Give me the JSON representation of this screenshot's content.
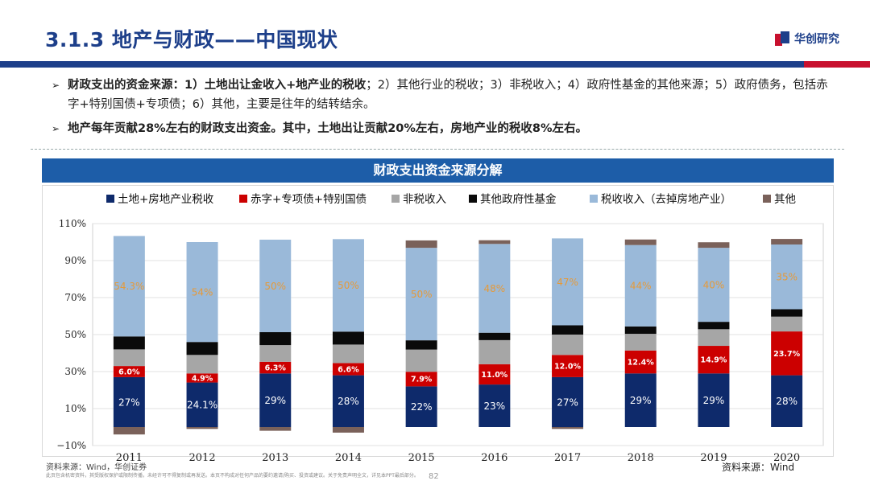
{
  "header": {
    "title": "3.1.3 地产与财政——中国现状",
    "logo_text": "华创研究"
  },
  "bullets": [
    {
      "lead": "财政支出的资金来源：1）土地出让金收入+地产业的税收",
      "rest": "；2）其他行业的税收；3）非税收入；4）政府性基金的其他来源；5）政府债务，包括赤字+特别国债+专项债；6）其他，主要是往年的结转结余。"
    },
    {
      "lead": "地产每年贡献28%左右的财政支出资金。其中，土地出让贡献20%左右，房地产业的税收8%左右。",
      "rest": ""
    }
  ],
  "chart_header": "财政支出资金来源分解",
  "footer": {
    "source_left": "资料来源：Wind，华创证券",
    "fine_print": "此页包含机密资料，其受版权保护或限制传播，未经许可不得复制或再发送。本页不构成对任何产品的要约邀请/购买、投资或建议。关于免责声明全文，详见本PPT最后部分。",
    "page_number": "82",
    "source_right": "资料来源：Wind"
  },
  "colors": {
    "brand_blue": "#1d3f8a",
    "brand_red": "#c8102e",
    "land": "#0e2a6b",
    "deficit": "#cc0000",
    "nontax": "#a6a6a6",
    "govfund": "#0a0a0a",
    "tax": "#9ab9d9",
    "other": "#7a615a",
    "tax_label": "#e59a3a"
  },
  "chart_data": {
    "type": "bar",
    "stacked": true,
    "title": "财政支出资金来源分解",
    "categories": [
      "2011",
      "2012",
      "2013",
      "2014",
      "2015",
      "2016",
      "2017",
      "2018",
      "2019",
      "2020"
    ],
    "ylim": [
      -10,
      110
    ],
    "yticks": [
      -10,
      10,
      30,
      50,
      70,
      90,
      110
    ],
    "ytick_labels": [
      "−10%",
      "10%",
      "30%",
      "50%",
      "70%",
      "90%",
      "110%"
    ],
    "legend_position": "top",
    "series": [
      {
        "name": "土地+房地产业税收",
        "key": "land",
        "values": [
          27,
          24.1,
          29,
          28,
          22,
          23,
          27,
          29,
          29,
          28
        ],
        "labels": [
          "27%",
          "24.1%",
          "29%",
          "28%",
          "22%",
          "23%",
          "27%",
          "29%",
          "29%",
          "28%"
        ]
      },
      {
        "name": "赤字+专项债+特别国债",
        "key": "deficit",
        "values": [
          6.0,
          4.9,
          6.3,
          6.6,
          7.9,
          11.0,
          12.0,
          12.4,
          14.9,
          23.7
        ],
        "labels": [
          "6.0%",
          "4.9%",
          "6.3%",
          "6.6%",
          "7.9%",
          "11.0%",
          "12.0%",
          "12.4%",
          "14.9%",
          "23.7%"
        ]
      },
      {
        "name": "非税收入",
        "key": "nontax",
        "values": [
          9,
          10,
          9,
          10,
          12,
          13,
          11,
          9,
          9,
          8
        ]
      },
      {
        "name": "其他政府性基金",
        "key": "govfund",
        "values": [
          7,
          7,
          7,
          7,
          5,
          4,
          5,
          4,
          4,
          4
        ]
      },
      {
        "name": "税收收入（去掉房地产业）",
        "key": "tax",
        "values": [
          54.3,
          54,
          50,
          50,
          50,
          48,
          47,
          44,
          40,
          35
        ],
        "labels": [
          "54.3%",
          "54%",
          "50%",
          "50%",
          "50%",
          "48%",
          "47%",
          "44%",
          "40%",
          "35%"
        ]
      },
      {
        "name": "其他",
        "key": "other",
        "values": [
          -4,
          -1,
          -2,
          -3,
          4,
          2,
          -1,
          3,
          3,
          3
        ]
      }
    ]
  }
}
